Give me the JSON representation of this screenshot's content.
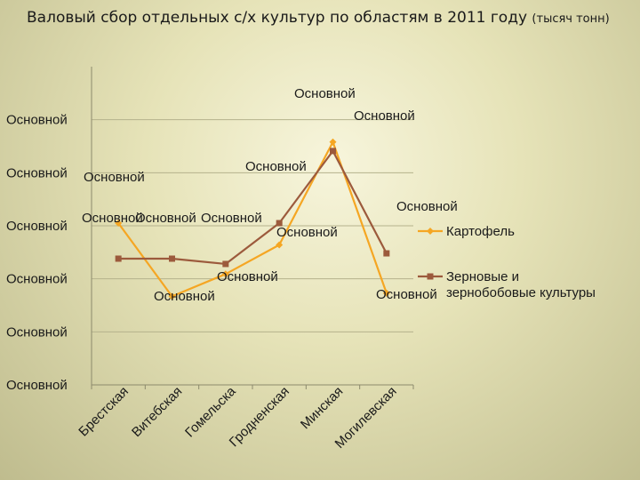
{
  "title_main": "Валовый сбор отдельных с/х культур по областям в 2011 году",
  "title_note": "(тысяч тонн)",
  "chart_data": {
    "type": "line",
    "title": "Валовый сбор отдельных с/х культур по областям в 2011 году (тысяч тонн)",
    "categories": [
      "Брестская",
      "Витебская",
      "Гомельска",
      "Гродненская",
      "Минская",
      "Могилевская"
    ],
    "y_tick_labels": [
      "Основной",
      "Основной",
      "Основной",
      "Основной",
      "Основной",
      "Основной"
    ],
    "ylim": [
      0,
      6
    ],
    "grid": true,
    "legend_position": "right",
    "series": [
      {
        "name": "Картофель",
        "color": "#f5a623",
        "marker": "diamond",
        "values": [
          3.05,
          1.67,
          2.09,
          2.64,
          4.58,
          1.73
        ],
        "labels": [
          "Основной",
          "Основной",
          "Основной",
          "Основной",
          "Основной",
          "Основной"
        ]
      },
      {
        "name": "Зерновые и зернобобовые культуры",
        "color": "#9c5a3c",
        "marker": "square",
        "values": [
          2.38,
          2.38,
          2.28,
          3.05,
          4.41,
          2.48
        ],
        "labels": [
          "Основной",
          "Основной",
          "Основной",
          "Основной",
          "Основной",
          "Основной"
        ]
      }
    ]
  }
}
